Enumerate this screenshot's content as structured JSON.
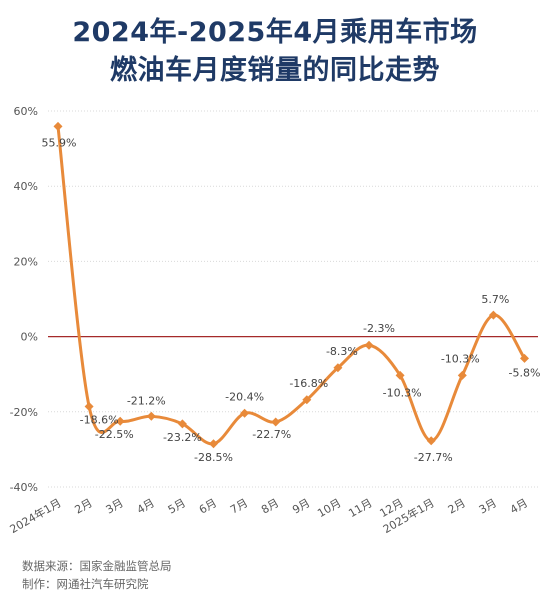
{
  "title_line1": "2024年-2025年4月乘用车市场",
  "title_line2": "燃油车月度销量的同比走势",
  "source_line": "数据来源：国家金融监管总局",
  "maker_line": "制作：网通社汽车研究院",
  "colors": {
    "title": "#1f3a66",
    "series": "#e88a3a",
    "zero_line": "#a52a2a",
    "grid": "#d9d9d9"
  },
  "chart_data": {
    "type": "line",
    "title": "2024年-2025年4月乘用车市场燃油车月度销量的同比走势",
    "categories": [
      "2024年1月",
      "2月",
      "3月",
      "4月",
      "5月",
      "6月",
      "7月",
      "8月",
      "9月",
      "10月",
      "11月",
      "12月",
      "2025年1月",
      "2月",
      "3月",
      "4月"
    ],
    "series": [
      {
        "values": [
          55.9,
          -18.6,
          -22.5,
          -21.2,
          -23.2,
          -28.5,
          -20.4,
          -22.7,
          -16.8,
          -8.3,
          -2.3,
          -10.3,
          -27.7,
          -10.3,
          5.7,
          -5.8
        ],
        "labels": [
          "55.9%",
          "-18.6%",
          "-22.5%",
          "-21.2%",
          "-23.2%",
          "-28.5%",
          "-20.4%",
          "-22.7%",
          "-16.8%",
          "-8.3%",
          "-2.3%",
          "-10.3%",
          "-27.7%",
          "-10.3%",
          "5.7%",
          "-5.8%"
        ]
      }
    ],
    "yticks": [
      "60%",
      "40%",
      "20%",
      "0%",
      "-20%",
      "-40%"
    ],
    "ylim": [
      -40,
      60
    ],
    "grid": "horizontal",
    "smooth": true
  }
}
